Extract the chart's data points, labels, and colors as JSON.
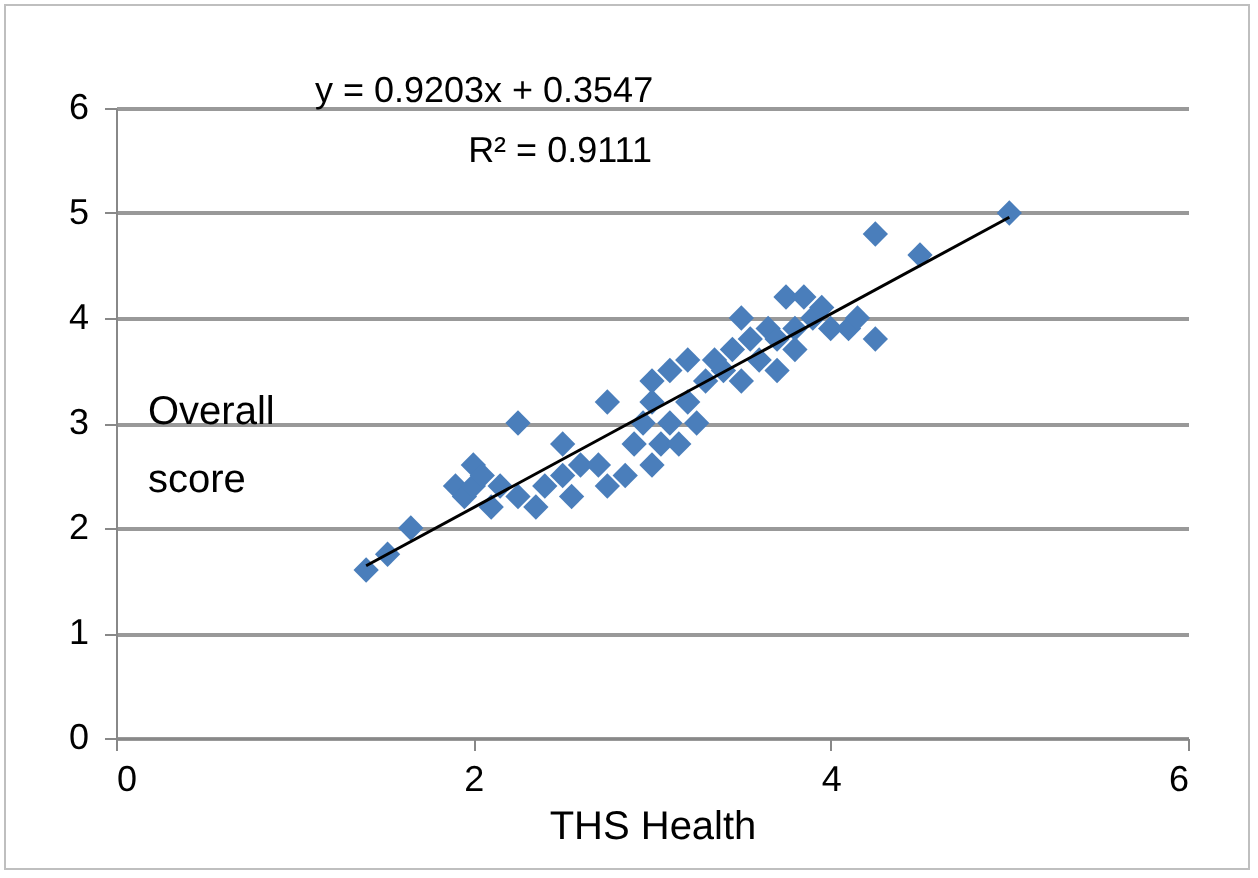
{
  "chart_data": {
    "type": "scatter",
    "xlabel": "THS Health",
    "ylabel": "Overall score",
    "annotations": [
      "y = 0.9203x + 0.3547",
      "R² = 0.9111"
    ],
    "xlim": [
      0,
      6
    ],
    "xticks": [
      0,
      2,
      4,
      6
    ],
    "ylim": [
      0,
      6
    ],
    "yticks": [
      0,
      1,
      2,
      3,
      4,
      5,
      6
    ],
    "grid": "y",
    "series": [
      {
        "marker": "diamond",
        "color": "#4a7ebb",
        "x": [
          1.4,
          1.52,
          1.65,
          1.9,
          1.95,
          2.0,
          2.0,
          2.05,
          2.1,
          2.15,
          2.25,
          2.25,
          2.35,
          2.4,
          2.5,
          2.5,
          2.55,
          2.6,
          2.7,
          2.75,
          2.75,
          2.85,
          2.9,
          2.95,
          3.0,
          3.0,
          3.0,
          3.05,
          3.1,
          3.1,
          3.15,
          3.2,
          3.2,
          3.25,
          3.3,
          3.35,
          3.4,
          3.45,
          3.5,
          3.5,
          3.55,
          3.6,
          3.65,
          3.7,
          3.7,
          3.75,
          3.8,
          3.8,
          3.85,
          3.9,
          3.95,
          4.0,
          4.1,
          4.15,
          4.25,
          4.25,
          4.5,
          5.0
        ],
        "values": [
          1.6,
          1.75,
          2.0,
          2.4,
          2.3,
          2.6,
          2.4,
          2.5,
          2.2,
          2.4,
          3.0,
          2.3,
          2.2,
          2.4,
          2.8,
          2.5,
          2.3,
          2.6,
          2.6,
          2.4,
          3.2,
          2.5,
          2.8,
          3.0,
          3.4,
          2.6,
          3.2,
          2.8,
          3.5,
          3.0,
          2.8,
          3.6,
          3.2,
          3.0,
          3.4,
          3.6,
          3.5,
          3.7,
          4.0,
          3.4,
          3.8,
          3.6,
          3.9,
          3.5,
          3.8,
          4.2,
          3.9,
          3.7,
          4.2,
          4.0,
          4.1,
          3.9,
          3.9,
          4.0,
          3.8,
          4.8,
          4.6,
          5.0
        ]
      },
      {
        "type": "line",
        "color": "#000000",
        "x": [
          1.4,
          5.0
        ],
        "values": [
          1.64,
          4.96
        ]
      }
    ]
  }
}
